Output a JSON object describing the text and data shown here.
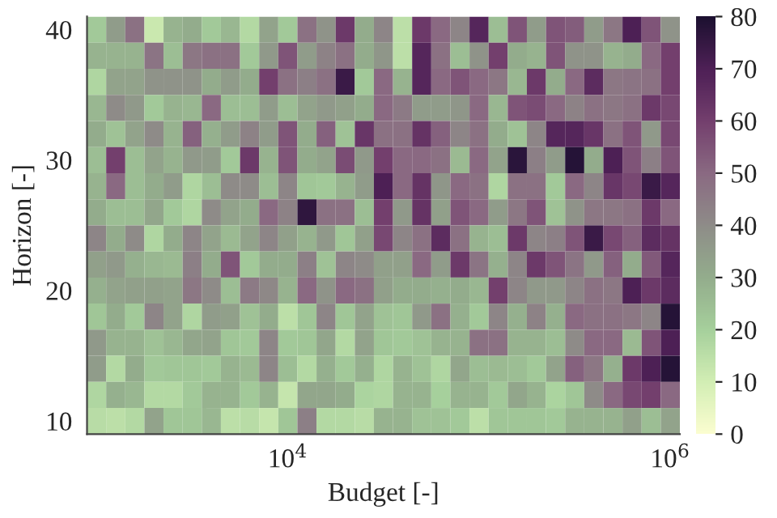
{
  "chart_data": {
    "type": "heatmap",
    "xlabel": "Budget [-]",
    "ylabel": "Horizon [-]",
    "x": [
      1000,
      1259,
      1585,
      1995,
      2512,
      3162,
      3981,
      5012,
      6310,
      7943,
      10000,
      12589,
      15849,
      19953,
      25119,
      31623,
      39811,
      50119,
      63096,
      79433,
      100000,
      125893,
      158489,
      199526,
      251189,
      316228,
      398107,
      501187,
      630957,
      794328,
      1000000
    ],
    "log": "x",
    "xlim": [
      891,
      1122018
    ],
    "xticks": [
      {
        "value": 10000,
        "label": "10$^{4}$"
      },
      {
        "value": 1000000,
        "label": "10$^{6}$"
      }
    ],
    "ylim": [
      9,
      41
    ],
    "yticks": [
      10,
      20,
      30,
      40
    ],
    "clim": [
      0,
      80
    ],
    "cticks": [
      0,
      10,
      20,
      30,
      40,
      50,
      60,
      70,
      80
    ],
    "grid": false,
    "cells": [
      [
        22,
        35,
        48,
        12,
        28,
        30,
        22,
        27,
        17,
        33,
        22,
        48,
        38,
        62,
        30,
        42,
        15,
        62,
        50,
        42,
        68,
        25,
        55,
        35,
        55,
        53,
        35,
        46,
        70,
        55,
        38
      ],
      [
        28,
        28,
        28,
        47,
        25,
        46,
        48,
        48,
        22,
        36,
        55,
        35,
        43,
        48,
        30,
        37,
        15,
        68,
        48,
        25,
        38,
        60,
        30,
        28,
        55,
        38,
        38,
        28,
        30,
        50,
        60
      ],
      [
        18,
        33,
        33,
        38,
        38,
        38,
        30,
        35,
        30,
        60,
        48,
        44,
        48,
        74,
        22,
        50,
        28,
        68,
        50,
        55,
        50,
        46,
        27,
        62,
        30,
        50,
        66,
        46,
        47,
        48,
        60
      ],
      [
        27,
        40,
        36,
        22,
        28,
        27,
        50,
        25,
        25,
        35,
        25,
        33,
        36,
        34,
        30,
        50,
        45,
        35,
        35,
        37,
        50,
        27,
        55,
        57,
        50,
        43,
        48,
        46,
        48,
        62,
        58
      ],
      [
        30,
        24,
        33,
        40,
        28,
        52,
        29,
        35,
        43,
        35,
        55,
        30,
        52,
        24,
        63,
        48,
        48,
        64,
        52,
        42,
        48,
        30,
        24,
        42,
        68,
        68,
        63,
        48,
        55,
        36,
        58
      ],
      [
        25,
        60,
        25,
        33,
        28,
        36,
        35,
        22,
        62,
        28,
        55,
        30,
        33,
        57,
        36,
        60,
        50,
        50,
        48,
        26,
        50,
        33,
        77,
        44,
        35,
        78,
        30,
        70,
        55,
        44,
        55
      ],
      [
        28,
        50,
        25,
        30,
        35,
        18,
        25,
        40,
        40,
        25,
        42,
        23,
        22,
        28,
        35,
        70,
        50,
        64,
        37,
        50,
        48,
        18,
        48,
        48,
        22,
        50,
        42,
        63,
        58,
        74,
        68
      ],
      [
        30,
        25,
        25,
        32,
        22,
        18,
        40,
        33,
        30,
        50,
        43,
        76,
        48,
        48,
        25,
        60,
        36,
        64,
        34,
        55,
        50,
        35,
        46,
        55,
        24,
        38,
        46,
        46,
        48,
        62,
        50
      ],
      [
        42,
        30,
        40,
        18,
        30,
        42,
        33,
        26,
        33,
        42,
        34,
        28,
        36,
        23,
        34,
        58,
        42,
        48,
        66,
        48,
        28,
        25,
        62,
        42,
        44,
        55,
        74,
        58,
        52,
        66,
        64
      ],
      [
        34,
        36,
        29,
        27,
        26,
        44,
        30,
        55,
        22,
        30,
        30,
        44,
        24,
        42,
        40,
        34,
        34,
        50,
        35,
        62,
        47,
        29,
        42,
        62,
        55,
        47,
        36,
        52,
        30,
        54,
        68
      ],
      [
        29,
        33,
        34,
        34,
        33,
        46,
        40,
        25,
        45,
        41,
        28,
        50,
        38,
        50,
        48,
        34,
        30,
        30,
        29,
        30,
        27,
        60,
        42,
        36,
        36,
        42,
        48,
        46,
        70,
        62,
        66
      ],
      [
        23,
        30,
        22,
        42,
        33,
        18,
        35,
        34,
        24,
        30,
        15,
        23,
        42,
        23,
        33,
        24,
        23,
        36,
        48,
        29,
        22,
        42,
        29,
        43,
        29,
        50,
        48,
        48,
        46,
        42,
        78
      ],
      [
        36,
        28,
        28,
        24,
        27,
        32,
        33,
        23,
        22,
        42,
        22,
        23,
        32,
        17,
        33,
        23,
        22,
        24,
        28,
        28,
        48,
        48,
        28,
        28,
        25,
        40,
        50,
        50,
        26,
        55,
        70
      ],
      [
        35,
        17,
        30,
        22,
        23,
        23,
        22,
        28,
        26,
        42,
        25,
        17,
        29,
        22,
        29,
        18,
        28,
        24,
        18,
        32,
        25,
        26,
        25,
        22,
        33,
        52,
        46,
        29,
        62,
        70,
        78
      ],
      [
        18,
        29,
        27,
        17,
        17,
        22,
        28,
        28,
        22,
        28,
        13,
        32,
        32,
        30,
        19,
        18,
        28,
        28,
        20,
        28,
        28,
        22,
        32,
        28,
        19,
        23,
        40,
        50,
        58,
        60,
        50
      ],
      [
        16,
        15,
        17,
        33,
        23,
        23,
        27,
        15,
        16,
        13,
        23,
        44,
        17,
        17,
        16,
        28,
        28,
        24,
        24,
        22,
        15,
        23,
        23,
        23,
        22,
        28,
        28,
        28,
        34,
        25,
        33
      ]
    ]
  }
}
